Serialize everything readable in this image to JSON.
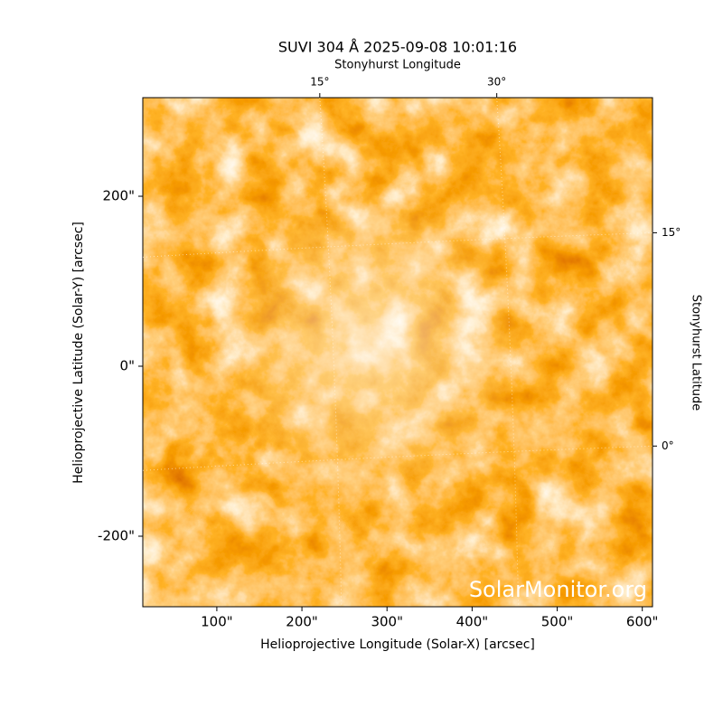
{
  "chart_data": {
    "type": "image",
    "title": "SUVI 304 Å 2025-09-08 10:01:16",
    "xlabel": "Helioprojective Longitude (Solar-X) [arcsec]",
    "ylabel": "Helioprojective Latitude (Solar-Y) [arcsec]",
    "x2label": "Stonyhurst Longitude",
    "y2label": "Stonyhurst Latitude",
    "watermark": "SolarMonitor.org",
    "xlim": [
      13,
      612
    ],
    "ylim": [
      -283,
      316
    ],
    "xticks": [
      {
        "value": 100,
        "label": "100\""
      },
      {
        "value": 200,
        "label": "200\""
      },
      {
        "value": 300,
        "label": "300\""
      },
      {
        "value": 400,
        "label": "400\""
      },
      {
        "value": 500,
        "label": "500\""
      },
      {
        "value": 600,
        "label": "600\""
      }
    ],
    "yticks": [
      {
        "value": -200,
        "label": "-200\""
      },
      {
        "value": 0,
        "label": "0\""
      },
      {
        "value": 200,
        "label": "200\""
      }
    ],
    "x2lim": [
      0,
      43.2
    ],
    "x2ticks": [
      {
        "value": 15,
        "label": "15°"
      },
      {
        "value": 30,
        "label": "30°"
      }
    ],
    "y2lim": [
      -11.3,
      24.5
    ],
    "y2ticks": [
      {
        "value": 0,
        "label": "0°"
      },
      {
        "value": 15,
        "label": "15°"
      }
    ],
    "grid": true
  }
}
